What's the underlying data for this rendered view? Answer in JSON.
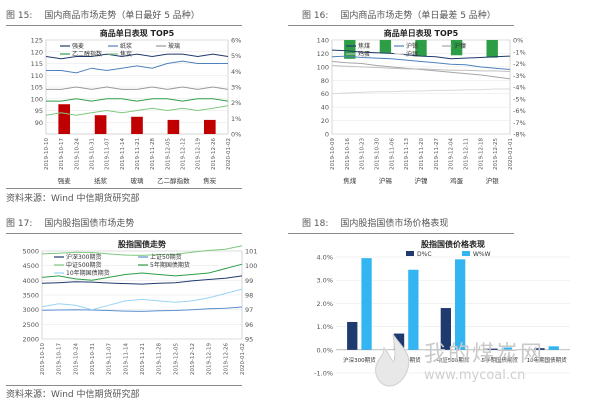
{
  "panels": [
    {
      "figure_no": "图 15:",
      "heading": "国内商品市场走势（单日最好 5 品种）",
      "chart_title": "商品单日表现 TOP5",
      "source": "资料来源：Wind 中信期货研究部"
    },
    {
      "figure_no": "图 16:",
      "heading": "国内商品市场走势（单日最差 5 品种）",
      "chart_title": "商品单日表现 TOP5"
    },
    {
      "figure_no": "图 17:",
      "heading": "国内股指国债市场走势",
      "chart_title": "股指国债走势",
      "source": "资料来源：Wind 中信期货研究部"
    },
    {
      "figure_no": "图 18:",
      "heading": "国内股指国债市场价格表现",
      "chart_title": "股指国债价格表现"
    }
  ],
  "watermark": {
    "text": "我的煤炭网",
    "url": "www.mycoal.cn"
  },
  "colors": {
    "bar_red": "#c00000",
    "bar_green": "#2e9e46",
    "dark_blue": "#1f3a6e",
    "light_blue": "#33b5f2"
  },
  "chart_data": [
    {
      "type": "bar+line",
      "title": "商品单日表现 TOP5",
      "x": [
        "2019-10-10",
        "2019-10-17",
        "2019-10-24",
        "2019-10-31",
        "2019-11-07",
        "2019-11-14",
        "2019-11-21",
        "2019-11-28",
        "2019-12-05",
        "2019-12-12",
        "2019-12-19",
        "2019-12-26",
        "2020-01-02"
      ],
      "ylim_left": [
        85,
        125
      ],
      "yticks_left": [
        90,
        95,
        100,
        105,
        110,
        115,
        120,
        125
      ],
      "ylim_right": [
        0,
        6
      ],
      "yticks_right": [
        "0%",
        "1%",
        "2%",
        "3%",
        "4%",
        "5%",
        "6%"
      ],
      "legend": [
        "强麦",
        "纸浆",
        "玻璃",
        "乙二醇指数",
        "焦炭"
      ],
      "categories": [
        "强麦",
        "纸浆",
        "玻璃",
        "乙二醇指数",
        "焦炭"
      ],
      "values": [
        1.9,
        1.2,
        1.1,
        0.9,
        0.9
      ],
      "series": [
        {
          "name": "强麦",
          "values": [
            118,
            117,
            118,
            118,
            119,
            118,
            119,
            118,
            119,
            119,
            118,
            119,
            118
          ]
        },
        {
          "name": "纸浆",
          "values": [
            112,
            112,
            111,
            113,
            112,
            113,
            114,
            113,
            115,
            116,
            115,
            115,
            115
          ]
        },
        {
          "name": "玻璃",
          "values": [
            104,
            104,
            105,
            104,
            105,
            104,
            104,
            105,
            104,
            105,
            104,
            105,
            104
          ]
        },
        {
          "name": "乙二醇指数",
          "values": [
            99,
            99,
            100,
            99,
            100,
            100,
            99,
            100,
            100,
            99,
            100,
            100,
            99
          ]
        },
        {
          "name": "焦炭",
          "values": [
            93,
            94,
            93,
            94,
            95,
            94,
            95,
            96,
            95,
            96,
            95,
            96,
            97
          ]
        }
      ]
    },
    {
      "type": "bar+line",
      "title": "商品单日表现 TOP5",
      "x": [
        "2019-10-09",
        "2019-10-16",
        "2019-10-23",
        "2019-10-30",
        "2019-11-06",
        "2019-11-13",
        "2019-11-20",
        "2019-11-27",
        "2019-12-04",
        "2019-12-11",
        "2019-12-18",
        "2019-12-25",
        "2020-01-01"
      ],
      "ylim_left": [
        0,
        140
      ],
      "yticks_left": [
        0,
        20,
        40,
        60,
        80,
        100,
        120,
        140
      ],
      "ylim_right": [
        -8,
        0
      ],
      "yticks_right": [
        "-8%",
        "-7%",
        "-6%",
        "-5%",
        "-4%",
        "-3%",
        "-2%",
        "-1%",
        "0%"
      ],
      "legend": [
        "焦煤",
        "沪锡",
        "沪镍",
        "鸡蛋",
        "沪银"
      ],
      "categories": [
        "焦煤",
        "沪锡",
        "沪镍",
        "鸡蛋",
        "沪银"
      ],
      "values": [
        -1.6,
        -1.1,
        -1.4,
        -1.3,
        -1.5
      ],
      "series": [
        {
          "name": "焦煤",
          "values": [
            125,
            124,
            122,
            121,
            120,
            118,
            116,
            115,
            112,
            113,
            114,
            115,
            116
          ]
        },
        {
          "name": "沪锡",
          "values": [
            115,
            116,
            114,
            113,
            112,
            110,
            108,
            106,
            104,
            103,
            100,
            98,
            96
          ]
        },
        {
          "name": "沪镍",
          "values": [
            108,
            106,
            105,
            102,
            100,
            98,
            96,
            94,
            92,
            90,
            88,
            85,
            82
          ]
        },
        {
          "name": "鸡蛋",
          "values": [
            102,
            101,
            100,
            99,
            98,
            97,
            97,
            96,
            95,
            95,
            94,
            94,
            93
          ]
        },
        {
          "name": "沪银",
          "values": [
            60,
            61,
            62,
            63,
            63,
            64,
            64,
            65,
            65,
            66,
            66,
            67,
            67
          ]
        }
      ]
    },
    {
      "type": "line",
      "title": "股指国债走势",
      "x": [
        "2019-10-10",
        "2019-10-17",
        "2019-10-24",
        "2019-10-31",
        "2019-11-07",
        "2019-11-14",
        "2019-11-21",
        "2019-11-28",
        "2019-12-05",
        "2019-12-12",
        "2019-12-19",
        "2019-12-26",
        "2020-01-02"
      ],
      "ylim_left": [
        2000,
        5000
      ],
      "yticks_left": [
        2000,
        2500,
        3000,
        3500,
        4000,
        4500,
        5000
      ],
      "ylim_right": [
        95,
        101
      ],
      "yticks_right": [
        95,
        96,
        97,
        98,
        99,
        100,
        101
      ],
      "legend": [
        "沪深300期货",
        "上证50期货",
        "中证500期货",
        "5年期国债期货",
        "10年期国债期货"
      ],
      "series": [
        {
          "name": "沪深300期货",
          "values": [
            3900,
            3920,
            3950,
            3940,
            3910,
            3890,
            3870,
            3900,
            3920,
            3980,
            4030,
            4070,
            4150
          ]
        },
        {
          "name": "上证50期货",
          "values": [
            2980,
            2990,
            3000,
            2990,
            2970,
            2950,
            2940,
            2960,
            2970,
            3000,
            3030,
            3050,
            3090
          ]
        },
        {
          "name": "中证500期货",
          "values": [
            4900,
            4920,
            4960,
            4950,
            4900,
            4860,
            4850,
            4880,
            4890,
            4960,
            5020,
            5060,
            5180
          ]
        },
        {
          "name": "5年期国债期货",
          "values": [
            99.2,
            99.3,
            99.1,
            99.0,
            99.2,
            99.4,
            99.5,
            99.4,
            99.3,
            99.4,
            99.5,
            99.8,
            100.1
          ]
        },
        {
          "name": "10年期国债期货",
          "values": [
            97.2,
            97.4,
            97.3,
            97.0,
            97.3,
            97.6,
            97.7,
            97.6,
            97.5,
            97.6,
            97.8,
            98.1,
            98.4
          ]
        }
      ]
    },
    {
      "type": "bar",
      "title": "股指国债价格表现",
      "categories": [
        "沪深300期货",
        "上证50期货",
        "中证500期货",
        "5年期国债期货",
        "10年期国债期货"
      ],
      "ylim": [
        -1.0,
        4.0
      ],
      "yticks": [
        "-1.0%",
        "0.0%",
        "1.0%",
        "2.0%",
        "3.0%",
        "4.0%"
      ],
      "series": [
        {
          "name": "D%C",
          "values": [
            1.2,
            0.7,
            1.8,
            0.05,
            0.07
          ]
        },
        {
          "name": "W%W",
          "values": [
            3.95,
            3.45,
            3.9,
            0.1,
            0.15
          ]
        }
      ]
    }
  ]
}
